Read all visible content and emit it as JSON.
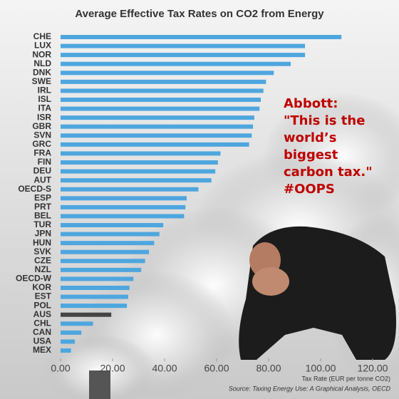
{
  "chart_data": {
    "type": "hbar",
    "title": "Average Effective Tax Rates on CO2 from Energy",
    "categories": [
      "CHE",
      "LUX",
      "NOR",
      "NLD",
      "DNK",
      "SWE",
      "IRL",
      "ISL",
      "ITA",
      "ISR",
      "GBR",
      "SVN",
      "GRC",
      "FRA",
      "FIN",
      "DEU",
      "AUT",
      "OECD-S",
      "ESP",
      "PRT",
      "BEL",
      "TUR",
      "JPN",
      "HUN",
      "SVK",
      "CZE",
      "NZL",
      "OECD-W",
      "KOR",
      "EST",
      "POL",
      "AUS",
      "CHL",
      "CAN",
      "USA",
      "MEX"
    ],
    "values": [
      108,
      94,
      94,
      88.5,
      82,
      79,
      78,
      77,
      76.5,
      74.5,
      74,
      73.5,
      72.5,
      61.5,
      60.5,
      59.5,
      58,
      53,
      48.5,
      48,
      47.5,
      39.5,
      38,
      36,
      34,
      32.5,
      31,
      28,
      26.5,
      26,
      25.5,
      19.5,
      12.5,
      8,
      5.5,
      4
    ],
    "color": "#4ea6de",
    "highlight": {
      "category": "AUS",
      "color": "#444444"
    },
    "xlim": [
      0,
      120
    ],
    "xticks": [
      {
        "value": 0,
        "label": "0.00"
      },
      {
        "value": 20,
        "label": "20.00"
      },
      {
        "value": 40,
        "label": "40.00"
      },
      {
        "value": 60,
        "label": "60.00"
      },
      {
        "value": 80,
        "label": "80.00"
      },
      {
        "value": 100,
        "label": "100.00"
      },
      {
        "value": 120,
        "label": "120.00"
      }
    ],
    "x_label": "Tax Rate (EUR per tonne CO2)",
    "source": "Source: Taxing Energy Use: A Graphical Analysis, OECD",
    "annotation": [
      "Abbott:",
      "\"This is the",
      "world’s",
      "biggest",
      "carbon tax.\"",
      "#OOPS"
    ]
  }
}
